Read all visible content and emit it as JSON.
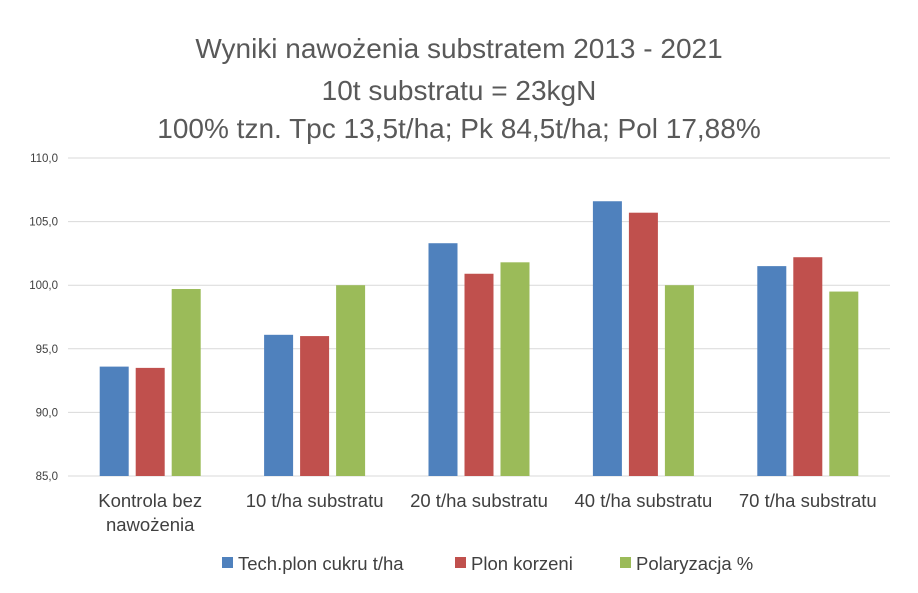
{
  "chart_data": {
    "type": "bar",
    "title": [
      "Wyniki nawożenia substratem 2013 - 2021",
      "10t substratu = 23kgN",
      "100% tzn. Tpc 13,5t/ha; Pk 84,5t/ha; Pol 17,88%"
    ],
    "categories": [
      [
        "Kontrola bez",
        "nawożenia"
      ],
      [
        "10 t/ha substratu"
      ],
      [
        "20 t/ha substratu"
      ],
      [
        "40 t/ha substratu"
      ],
      [
        "70 t/ha substratu"
      ]
    ],
    "series": [
      {
        "name": "Tech.plon cukru t/ha",
        "color": "#4f81bd",
        "values": [
          93.6,
          96.1,
          103.3,
          106.6,
          101.5
        ]
      },
      {
        "name": "Plon korzeni",
        "color": "#c0504d",
        "values": [
          93.5,
          96.0,
          100.9,
          105.7,
          102.2
        ]
      },
      {
        "name": "Polaryzacja %",
        "color": "#9bbb59",
        "values": [
          99.7,
          100.0,
          101.8,
          100.0,
          99.5
        ]
      }
    ],
    "ylim": [
      85,
      110
    ],
    "yticks": [
      "85,0",
      "90,0",
      "95,0",
      "100,0",
      "105,0",
      "110,0"
    ],
    "ytick_values": [
      85,
      90,
      95,
      100,
      105,
      110
    ],
    "grid": true,
    "legend_position": "bottom",
    "gridline_color": "#d9d9d9"
  }
}
